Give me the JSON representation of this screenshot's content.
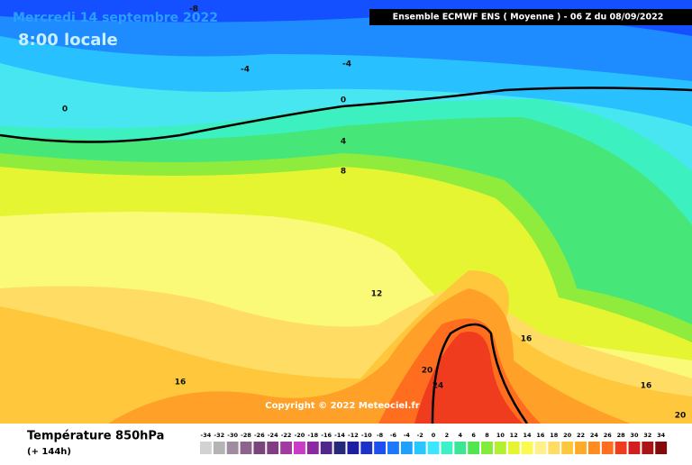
{
  "header": {
    "date": "Mercredi 14 septembre 2022",
    "time": "8:00 locale",
    "run": "Ensemble ECMWF ENS  ( Moyenne )  -  06 Z du 08/09/2022"
  },
  "map": {
    "contour_labels": [
      -8,
      -4,
      -4,
      0,
      0,
      4,
      8,
      12,
      16,
      16,
      20,
      24,
      16,
      20
    ],
    "copyright": "Copyright © 2022 Meteociel.fr"
  },
  "footer": {
    "variable": "Température 850hPa",
    "lead": "(+ 144h)"
  },
  "legend": {
    "values": [
      -34,
      -32,
      -30,
      -28,
      -26,
      -24,
      -22,
      -20,
      -18,
      -16,
      -14,
      -12,
      -10,
      -8,
      -6,
      -4,
      -2,
      0,
      2,
      4,
      6,
      8,
      10,
      12,
      14,
      16,
      18,
      20,
      22,
      24,
      26,
      28,
      30,
      32,
      34
    ],
    "colors": [
      "#d2d2d2",
      "#b4b4b4",
      "#a08ca0",
      "#8c648c",
      "#784678",
      "#823c82",
      "#a03ca0",
      "#c83cc8",
      "#8c28a0",
      "#50288c",
      "#282878",
      "#1e1ea0",
      "#1e32c8",
      "#1e50f0",
      "#1e78ff",
      "#1ea0ff",
      "#28c8ff",
      "#3ce6ff",
      "#3cf0c8",
      "#3ce696",
      "#50e650",
      "#82eb3c",
      "#b4f032",
      "#e6f532",
      "#fafa50",
      "#fff08c",
      "#ffdc64",
      "#ffc83c",
      "#ffaa28",
      "#ff8c1e",
      "#ff6e1e",
      "#f03c1e",
      "#d21e1e",
      "#aa1414",
      "#820a0a"
    ]
  }
}
